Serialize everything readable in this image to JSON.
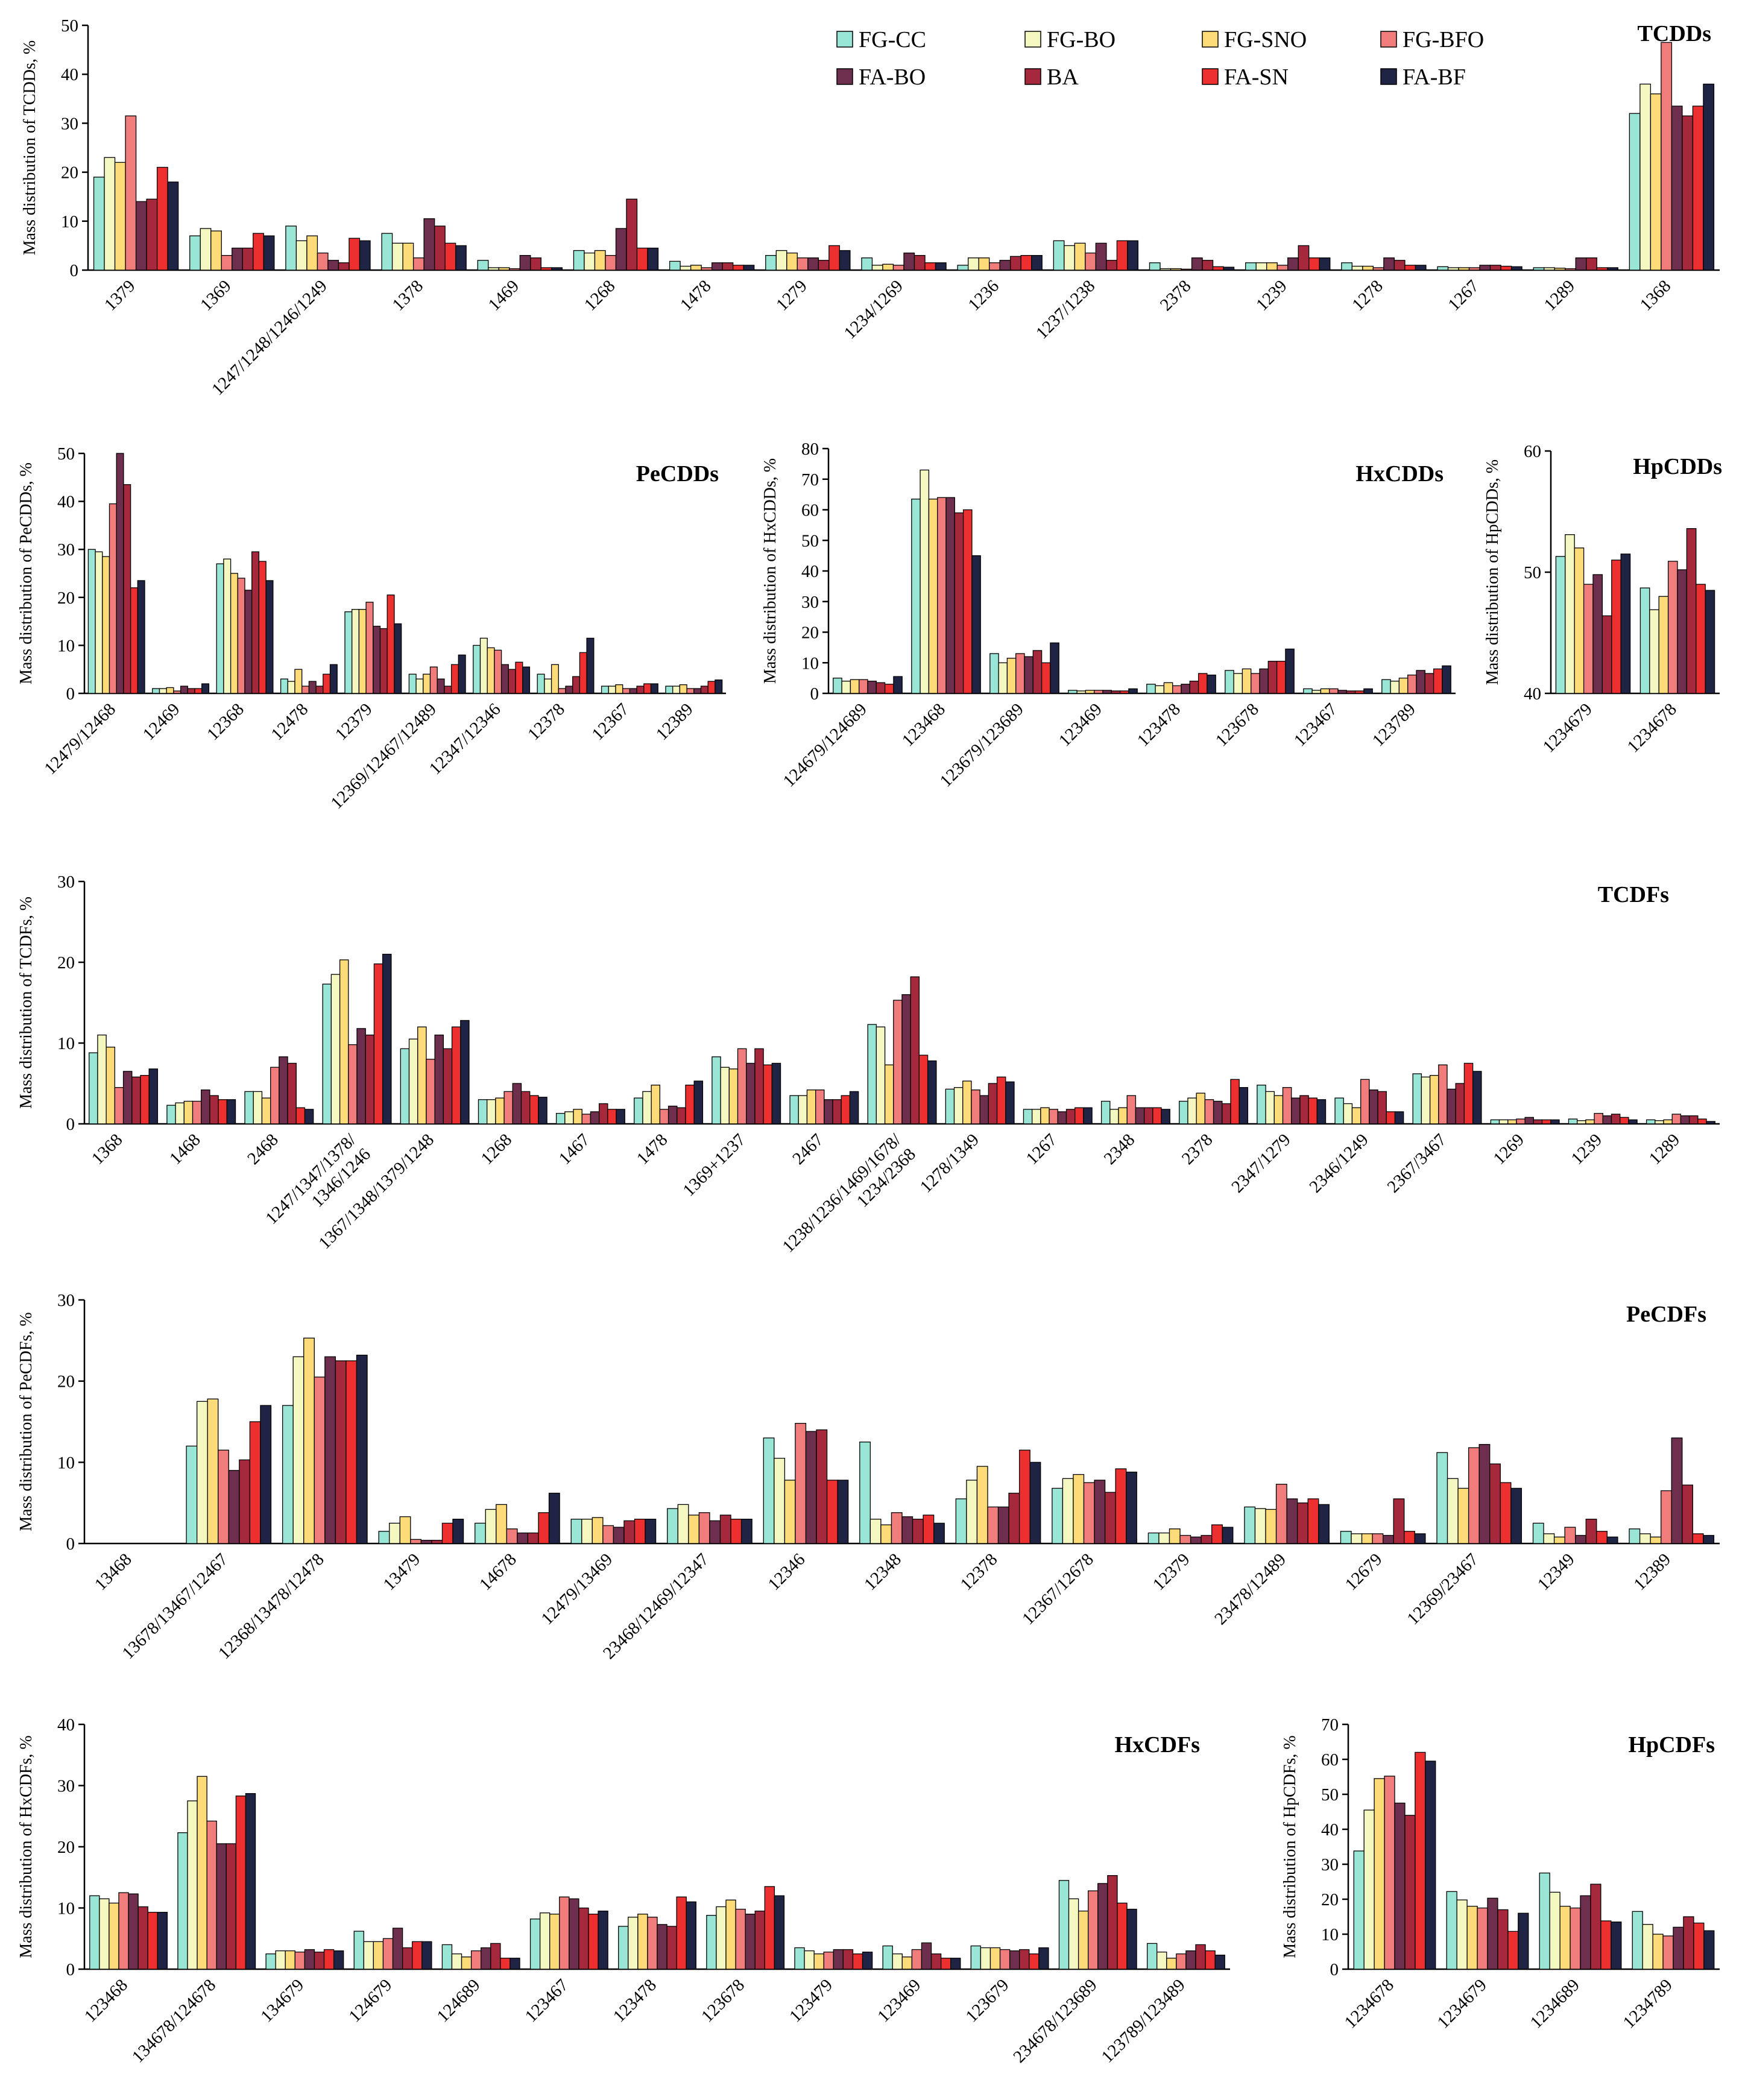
{
  "legend": {
    "entries": [
      "FG-CC",
      "FG-BO",
      "FG-SNO",
      "FG-BFO",
      "FA-BO",
      "BA",
      "FA-SN",
      "FA-BF"
    ],
    "colors": [
      "#99E6D6",
      "#F4F8C0",
      "#FCDB78",
      "#F07C7C",
      "#6E2E4D",
      "#A5283C",
      "#EE2F2F",
      "#1F2444"
    ]
  },
  "chart_data": [
    {
      "id": "tcdds",
      "type": "bar",
      "title": "TCDDs",
      "ylabel": "Mass distribution of TCDDs, %",
      "ylim": [
        0,
        50
      ],
      "yticks": [
        0,
        10,
        20,
        30,
        40,
        50
      ],
      "categories": [
        "1379",
        "1369",
        "1247/1248/1246/1249",
        "1378",
        "1469",
        "1268",
        "1478",
        "1279",
        "1234/1269",
        "1236",
        "1237/1238",
        "2378",
        "1239",
        "1278",
        "1267",
        "1289",
        "1368"
      ],
      "values": [
        [
          19,
          23,
          22,
          31.5,
          14,
          14.5,
          21,
          18
        ],
        [
          7,
          8.5,
          8,
          3,
          4.5,
          4.5,
          7.5,
          7
        ],
        [
          9,
          6,
          7,
          3.5,
          2,
          1.5,
          6.5,
          6
        ],
        [
          7.5,
          5.5,
          5.5,
          2.5,
          10.5,
          9,
          5.5,
          5
        ],
        [
          2,
          0.5,
          0.5,
          0.3,
          3,
          2.5,
          0.5,
          0.5
        ],
        [
          4,
          3.5,
          4,
          3,
          8.5,
          14.5,
          4.5,
          4.5
        ],
        [
          1.8,
          0.8,
          1,
          0.5,
          1.5,
          1.5,
          1,
          1
        ],
        [
          3,
          4,
          3.5,
          2.5,
          2.5,
          2,
          5,
          4
        ],
        [
          2.5,
          1,
          1.2,
          1,
          3.5,
          3,
          1.5,
          1.5
        ],
        [
          1,
          2.5,
          2.5,
          1.5,
          2,
          2.8,
          3,
          3
        ],
        [
          6,
          5,
          5.5,
          3.5,
          5.5,
          2,
          6,
          6
        ],
        [
          1.5,
          0.3,
          0.3,
          0.2,
          2.5,
          2,
          0.7,
          0.6
        ],
        [
          1.5,
          1.5,
          1.5,
          1,
          2.5,
          5,
          2.5,
          2.5
        ],
        [
          1.5,
          0.8,
          0.8,
          0.5,
          2.5,
          2,
          1,
          1
        ],
        [
          0.7,
          0.5,
          0.5,
          0.5,
          1,
          1,
          0.8,
          0.7
        ],
        [
          0.5,
          0.5,
          0.4,
          0.3,
          2.5,
          2.5,
          0.5,
          0.5
        ],
        [
          32,
          38,
          36,
          46.5,
          33.5,
          31.5,
          33.5,
          38
        ]
      ]
    },
    {
      "id": "pecdds",
      "type": "bar",
      "title": "PeCDDs",
      "ylabel": "Mass distribution of PeCDDs, %",
      "ylim": [
        0,
        50
      ],
      "yticks": [
        0,
        10,
        20,
        30,
        40,
        50
      ],
      "categories": [
        "12479/12468",
        "12469",
        "12368",
        "12478",
        "12379",
        "12369/12467/12489",
        "12347/12346",
        "12378",
        "12367",
        "12389"
      ],
      "values": [
        [
          30,
          29.5,
          28.5,
          39.5,
          51,
          43.5,
          22,
          23.5
        ],
        [
          1,
          1,
          1.2,
          0.5,
          1.5,
          1,
          1,
          2
        ],
        [
          27,
          28,
          25,
          24,
          21.5,
          29.5,
          27.5,
          23.5
        ],
        [
          3,
          2.5,
          5,
          1.5,
          2.5,
          1.5,
          4,
          6
        ],
        [
          17,
          17.5,
          17.5,
          19,
          14,
          13.5,
          20.5,
          14.5
        ],
        [
          4,
          3,
          4,
          5.5,
          3,
          1.5,
          6,
          8
        ],
        [
          10,
          11.5,
          9.5,
          9,
          6,
          5,
          6.5,
          5.5
        ],
        [
          4,
          3,
          6,
          1,
          1.5,
          3.5,
          8.5,
          11.5
        ],
        [
          1.5,
          1.5,
          1.8,
          1,
          1,
          1.5,
          2,
          2
        ],
        [
          1.5,
          1.5,
          1.8,
          1,
          1,
          1.5,
          2.5,
          2.8
        ]
      ]
    },
    {
      "id": "hxcdds",
      "type": "bar",
      "title": "HxCDDs",
      "ylabel": "Mass distribution of HxCDDs, %",
      "ylim": [
        0,
        80
      ],
      "yticks": [
        0,
        10,
        20,
        30,
        40,
        50,
        60,
        70,
        80
      ],
      "categories": [
        "124679/124689",
        "123468",
        "123679/123689",
        "123469",
        "123478",
        "123678",
        "123467",
        "123789"
      ],
      "values": [
        [
          5,
          4,
          4.5,
          4.5,
          4,
          3.5,
          3,
          5.5
        ],
        [
          63.5,
          73,
          63.5,
          64,
          64,
          59,
          60,
          45
        ],
        [
          13,
          10,
          11.5,
          13,
          12,
          14,
          10,
          16.5
        ],
        [
          1,
          0.8,
          1,
          1,
          1,
          0.8,
          0.8,
          1.5
        ],
        [
          3,
          2.5,
          3.5,
          2.5,
          3,
          4,
          6.5,
          6
        ],
        [
          7.5,
          6.5,
          8,
          6.5,
          8,
          10.5,
          10.5,
          14.5
        ],
        [
          1.5,
          1,
          1.5,
          1.5,
          1,
          0.8,
          0.8,
          1.5
        ],
        [
          4.5,
          4,
          5,
          6,
          7.5,
          6.5,
          8,
          9
        ]
      ]
    },
    {
      "id": "hpcdds",
      "type": "bar",
      "title": "HpCDDs",
      "ylabel": "Mass distribution of HpCDDs, %",
      "ylim": [
        40,
        60
      ],
      "yticks": [
        40,
        50,
        60
      ],
      "categories": [
        "1234679",
        "1234678"
      ],
      "values": [
        [
          51.3,
          53.1,
          52,
          49,
          49.8,
          46.4,
          51,
          51.5
        ],
        [
          48.7,
          46.9,
          48,
          50.9,
          50.2,
          53.6,
          49,
          48.5
        ]
      ]
    },
    {
      "id": "tcdfs",
      "type": "bar",
      "title": "TCDFs",
      "ylabel": "Mass distribution of TCDFs, %",
      "ylim": [
        0,
        30
      ],
      "yticks": [
        0,
        10,
        20,
        30
      ],
      "categories": [
        "1368",
        "1468",
        "2468",
        "1247/1347/1378/1346/1246",
        "1367/1348/1379/1248",
        "1268",
        "1467",
        "1478",
        "1369+1237",
        "2467",
        "1238/1236/1469/1678/1234/2368",
        "1278/1349",
        "1267",
        "2348",
        "2378",
        "2347/1279",
        "2346/1249",
        "2367/3467",
        "1269",
        "1239",
        "1289"
      ],
      "tick_lines": [
        [
          "1368"
        ],
        [
          "1468"
        ],
        [
          "2468"
        ],
        [
          "1247/1347/1378/",
          "1346/1246"
        ],
        [
          "1367/1348/1379/1248"
        ],
        [
          "1268"
        ],
        [
          "1467"
        ],
        [
          "1478"
        ],
        [
          "1369+1237"
        ],
        [
          "2467"
        ],
        [
          "1238/1236/1469/1678/",
          "1234/2368"
        ],
        [
          "1278/1349"
        ],
        [
          "1267"
        ],
        [
          "2348"
        ],
        [
          "2378"
        ],
        [
          "2347/1279"
        ],
        [
          "2346/1249"
        ],
        [
          "2367/3467"
        ],
        [
          "1269"
        ],
        [
          "1239"
        ],
        [
          "1289"
        ]
      ],
      "values": [
        [
          8.8,
          11,
          9.5,
          4.5,
          6.5,
          5.8,
          6,
          6.8
        ],
        [
          2.3,
          2.6,
          2.8,
          2.8,
          4.2,
          3.5,
          3,
          3
        ],
        [
          4,
          4,
          3.2,
          7,
          8.3,
          7.5,
          2,
          1.8
        ],
        [
          17.3,
          18.5,
          20.3,
          9.8,
          11.8,
          11,
          19.8,
          21
        ],
        [
          9.3,
          10.5,
          12,
          8,
          11,
          9.3,
          12,
          12.8
        ],
        [
          3,
          3,
          3.2,
          4,
          5,
          4,
          3.5,
          3.3
        ],
        [
          1.3,
          1.5,
          1.8,
          1.2,
          1.5,
          2.5,
          1.8,
          1.8
        ],
        [
          3.2,
          4,
          4.8,
          1.8,
          2.2,
          2,
          4.8,
          5.3
        ],
        [
          8.3,
          7,
          6.8,
          9.3,
          7.5,
          9.3,
          7.3,
          7.5
        ],
        [
          3.5,
          3.5,
          4.2,
          4.2,
          3,
          3,
          3.5,
          4
        ],
        [
          12.3,
          12,
          7.3,
          15.3,
          16,
          18.2,
          8.5,
          7.8
        ],
        [
          4.3,
          4.5,
          5.3,
          4.2,
          3.5,
          5,
          5.8,
          5.2
        ],
        [
          1.8,
          1.8,
          2,
          1.8,
          1.5,
          1.8,
          2,
          2
        ],
        [
          2.8,
          1.8,
          2,
          3.5,
          2,
          2,
          2,
          1.8
        ],
        [
          2.8,
          3.2,
          3.8,
          3,
          2.8,
          2.5,
          5.5,
          4.5
        ],
        [
          4.8,
          4,
          3.5,
          4.5,
          3.2,
          3.5,
          3.2,
          3
        ],
        [
          3.2,
          2.5,
          2,
          5.5,
          4.2,
          4,
          1.5,
          1.5
        ],
        [
          6.2,
          5.8,
          6,
          7.3,
          4.3,
          5,
          7.5,
          6.5
        ],
        [
          0.5,
          0.5,
          0.5,
          0.6,
          0.8,
          0.5,
          0.5,
          0.5
        ],
        [
          0.6,
          0.4,
          0.5,
          1.3,
          1,
          1.2,
          0.8,
          0.5
        ],
        [
          0.5,
          0.4,
          0.5,
          1.2,
          1,
          1,
          0.6,
          0.3
        ]
      ]
    },
    {
      "id": "pecdfs",
      "type": "bar",
      "title": "PeCDFs",
      "ylabel": "Mass distribution of PeCDFs, %",
      "ylim": [
        0,
        30
      ],
      "yticks": [
        0,
        10,
        20,
        30
      ],
      "categories": [
        "13468",
        "13678/13467/12467",
        "12368/13478/12478",
        "13479",
        "14678",
        "12479/13469",
        "23468/12469/12347",
        "12346",
        "12348",
        "12378",
        "12367/12678",
        "12379",
        "23478/12489",
        "12679",
        "12369/23467",
        "12349",
        "12389"
      ],
      "values": [
        [
          0,
          0,
          0,
          0,
          0,
          0,
          0,
          0
        ],
        [
          12,
          17.5,
          17.8,
          11.5,
          9,
          10.3,
          15,
          17
        ],
        [
          17,
          23,
          25.3,
          20.5,
          23,
          22.5,
          22.5,
          23.2
        ],
        [
          1.5,
          2.5,
          3.3,
          0.5,
          0.4,
          0.4,
          2.5,
          3
        ],
        [
          2.5,
          4.2,
          4.8,
          1.8,
          1.3,
          1.3,
          3.8,
          6.2
        ],
        [
          3,
          3,
          3.2,
          2.2,
          2,
          2.8,
          3,
          3
        ],
        [
          4.3,
          4.8,
          3.5,
          3.8,
          2.8,
          3.5,
          3,
          3
        ],
        [
          13,
          10.5,
          7.8,
          14.8,
          13.8,
          14,
          7.8,
          7.8
        ],
        [
          12.5,
          3,
          2.3,
          3.8,
          3.3,
          3,
          3.5,
          2.5
        ],
        [
          5.5,
          7.8,
          9.5,
          4.5,
          4.5,
          6.2,
          11.5,
          10
        ],
        [
          6.8,
          8,
          8.5,
          7.5,
          7.8,
          6.3,
          9.2,
          8.8
        ],
        [
          1.3,
          1.3,
          1.8,
          1,
          0.8,
          1,
          2.3,
          2
        ],
        [
          4.5,
          4.3,
          4.2,
          7.3,
          5.5,
          5,
          5.5,
          4.8
        ],
        [
          1.5,
          1.2,
          1.2,
          1.2,
          1,
          5.5,
          1.5,
          1.2
        ],
        [
          11.2,
          8,
          6.8,
          11.8,
          12.2,
          9.8,
          7.5,
          6.8
        ],
        [
          2.5,
          1.2,
          0.8,
          2,
          1,
          3,
          1.5,
          0.8
        ],
        [
          1.8,
          1.2,
          0.8,
          6.5,
          13,
          7.2,
          1.2,
          1
        ]
      ]
    },
    {
      "id": "hxcdfs",
      "type": "bar",
      "title": "HxCDFs",
      "ylabel": "Mass distribution of HxCDFs, %",
      "ylim": [
        0,
        40
      ],
      "yticks": [
        0,
        10,
        20,
        30,
        40
      ],
      "categories": [
        "123468",
        "134678/124678",
        "134679",
        "124679",
        "124689",
        "123467",
        "123478",
        "123678",
        "123479",
        "123469",
        "123679",
        "234678/123689",
        "123789/123489"
      ],
      "values": [
        [
          12,
          11.5,
          10.8,
          12.5,
          12.3,
          10.2,
          9.3,
          9.3
        ],
        [
          22.3,
          27.5,
          31.5,
          24.2,
          20.5,
          20.5,
          28.3,
          28.7
        ],
        [
          2.5,
          3,
          3,
          2.8,
          3.2,
          2.8,
          3.2,
          3
        ],
        [
          6.2,
          4.5,
          4.5,
          5,
          6.7,
          3.5,
          4.5,
          4.5
        ],
        [
          4,
          2.5,
          2,
          3,
          3.5,
          4.2,
          1.8,
          1.8
        ],
        [
          8.2,
          9.2,
          9,
          11.8,
          11.5,
          10,
          9,
          9.5
        ],
        [
          7,
          8.5,
          9,
          8.5,
          7.3,
          7,
          11.8,
          11
        ],
        [
          8.8,
          10.2,
          11.3,
          9.8,
          9,
          9.5,
          13.5,
          12
        ],
        [
          3.5,
          3,
          2.5,
          2.8,
          3.2,
          3.2,
          2.5,
          2.8
        ],
        [
          3.8,
          2.5,
          2,
          3.2,
          4.3,
          2.5,
          1.8,
          1.8
        ],
        [
          3.8,
          3.5,
          3.5,
          3.2,
          3,
          3.2,
          2.5,
          3.5
        ],
        [
          14.5,
          11.5,
          9.5,
          12.8,
          14,
          15.3,
          10.8,
          9.8
        ],
        [
          4.2,
          2.8,
          1.8,
          2.5,
          3,
          4,
          3,
          2.3
        ]
      ]
    },
    {
      "id": "hpcdfs",
      "type": "bar",
      "title": "HpCDFs",
      "ylabel": "Mass distribution of HpCDFs, %",
      "ylim": [
        0,
        70
      ],
      "yticks": [
        0,
        10,
        20,
        30,
        40,
        50,
        60,
        70
      ],
      "categories": [
        "1234678",
        "1234679",
        "1234689",
        "1234789"
      ],
      "values": [
        [
          33.8,
          45.5,
          54.5,
          55.2,
          47.5,
          44,
          62,
          59.5
        ],
        [
          22.2,
          19.8,
          18,
          17.5,
          20.3,
          17,
          10.8,
          16
        ],
        [
          27.5,
          22,
          18,
          17.5,
          21,
          24.3,
          13.8,
          13.5
        ],
        [
          16.5,
          12.8,
          10,
          9.5,
          12,
          15,
          13.2,
          11
        ]
      ]
    }
  ]
}
